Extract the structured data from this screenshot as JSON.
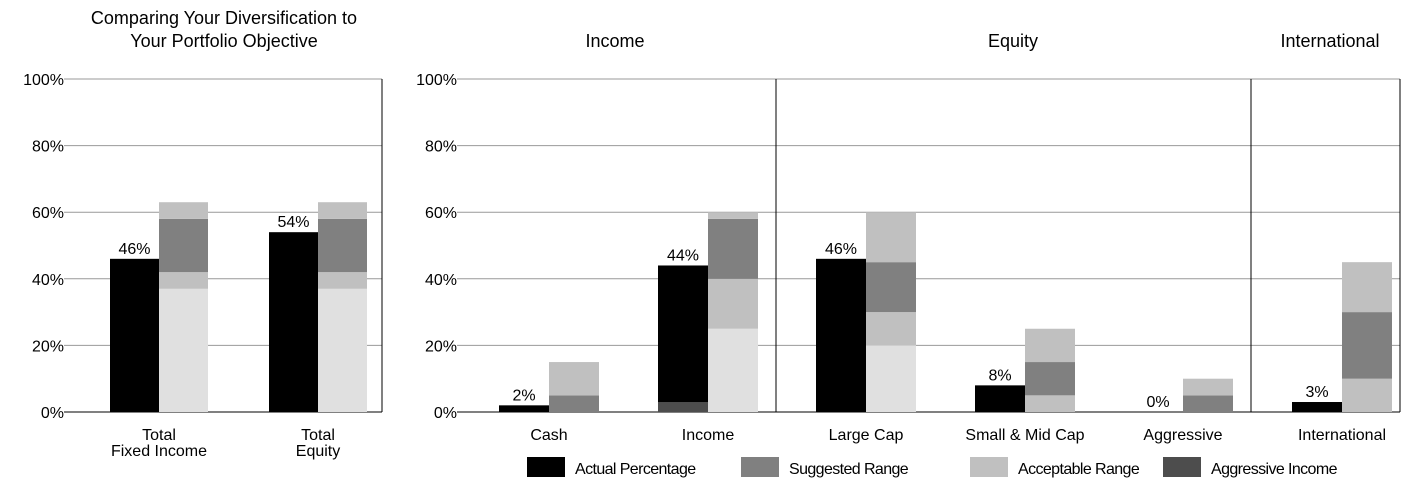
{
  "colors": {
    "actual": "#000000",
    "suggested": "#808080",
    "acceptable": "#c0c0c0",
    "aggressive_income": "#4d4d4d",
    "unfilled": "#e0e0e0",
    "axis": "#000000",
    "grid": "#999999"
  },
  "chart_data": [
    {
      "type": "bar",
      "title": "Comparing Your Diversification to Your Portfolio Objective",
      "title_lines": [
        "Comparing Your Diversification to",
        "Your Portfolio Objective"
      ],
      "ylim": [
        0,
        100
      ],
      "yticks": [
        "0%",
        "20%",
        "40%",
        "60%",
        "80%",
        "100%"
      ],
      "grid": true,
      "categories": [
        {
          "label_lines": [
            "Total",
            "Fixed Income"
          ],
          "actual": 46,
          "actual_label": "46%",
          "aggressive_income": 0,
          "target": {
            "unfilled_top": 37,
            "acceptable_low": [
              37,
              42
            ],
            "suggested": [
              42,
              58
            ],
            "acceptable_high": [
              58,
              63
            ]
          }
        },
        {
          "label_lines": [
            "Total",
            "Equity"
          ],
          "actual": 54,
          "actual_label": "54%",
          "aggressive_income": 0,
          "target": {
            "unfilled_top": 37,
            "acceptable_low": [
              37,
              42
            ],
            "suggested": [
              42,
              58
            ],
            "acceptable_high": [
              58,
              63
            ]
          }
        }
      ]
    },
    {
      "type": "bar",
      "ylim": [
        0,
        100
      ],
      "yticks": [
        "0%",
        "20%",
        "40%",
        "60%",
        "80%",
        "100%"
      ],
      "grid": true,
      "groups": [
        "Income",
        "Equity",
        "International"
      ],
      "categories": [
        {
          "group": "Income",
          "label_lines": [
            "Cash"
          ],
          "actual": 2,
          "actual_label": "2%",
          "aggressive_income": 0,
          "target": {
            "unfilled_top": 0,
            "acceptable_low": [
              0,
              0
            ],
            "suggested": [
              0,
              5
            ],
            "acceptable_high": [
              5,
              15
            ]
          }
        },
        {
          "group": "Income",
          "label_lines": [
            "Income"
          ],
          "actual": 44,
          "actual_label": "44%",
          "aggressive_income": 3,
          "target": {
            "unfilled_top": 25,
            "acceptable_low": [
              25,
              40
            ],
            "suggested": [
              40,
              58
            ],
            "acceptable_high": [
              58,
              60
            ]
          }
        },
        {
          "group": "Equity",
          "label_lines": [
            "Large Cap"
          ],
          "actual": 46,
          "actual_label": "46%",
          "aggressive_income": 0,
          "target": {
            "unfilled_top": 20,
            "acceptable_low": [
              20,
              30
            ],
            "suggested": [
              30,
              45
            ],
            "acceptable_high": [
              45,
              60
            ]
          }
        },
        {
          "group": "Equity",
          "label_lines": [
            "Small & Mid Cap"
          ],
          "actual": 8,
          "actual_label": "8%",
          "aggressive_income": 0,
          "target": {
            "unfilled_top": 0,
            "acceptable_low": [
              0,
              5
            ],
            "suggested": [
              5,
              15
            ],
            "acceptable_high": [
              15,
              25
            ]
          }
        },
        {
          "group": "Equity",
          "label_lines": [
            "Aggressive"
          ],
          "actual": 0,
          "actual_label": "0%",
          "aggressive_income": 0,
          "target": {
            "unfilled_top": 0,
            "acceptable_low": [
              0,
              0
            ],
            "suggested": [
              0,
              5
            ],
            "acceptable_high": [
              5,
              10
            ]
          }
        },
        {
          "group": "International",
          "label_lines": [
            "International"
          ],
          "actual": 3,
          "actual_label": "3%",
          "aggressive_income": 0,
          "target": {
            "unfilled_top": 0,
            "acceptable_low": [
              0,
              10
            ],
            "suggested": [
              10,
              30
            ],
            "acceptable_high": [
              30,
              45
            ]
          }
        }
      ],
      "legend": [
        {
          "label": "Actual Percentage",
          "color_key": "actual"
        },
        {
          "label": "Suggested Range",
          "color_key": "suggested"
        },
        {
          "label": "Acceptable Range",
          "color_key": "acceptable"
        },
        {
          "label": "Aggressive Income",
          "color_key": "aggressive_income"
        }
      ],
      "legend_position": "bottom"
    }
  ]
}
